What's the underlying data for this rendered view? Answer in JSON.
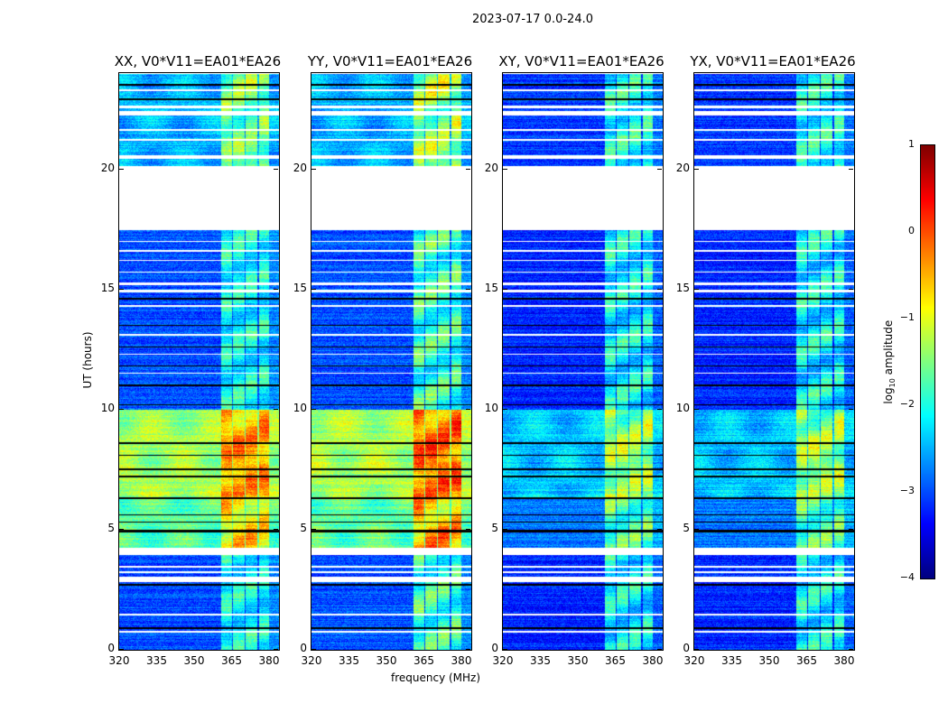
{
  "chart_data": {
    "type": "heatmap",
    "title": "2023-07-17 0.0-24.0",
    "xlabel": "frequency (MHz)",
    "ylabel": "UT (hours)",
    "xlim": [
      320,
      384
    ],
    "ylim": [
      0,
      24
    ],
    "xticks": [
      "320",
      "335",
      "350",
      "365",
      "380"
    ],
    "xtick_values": [
      320,
      335,
      350,
      365,
      380
    ],
    "yticks": [
      "0",
      "5",
      "10",
      "15",
      "20"
    ],
    "ytick_values": [
      0,
      5,
      10,
      15,
      20
    ],
    "colorbar": {
      "label_main": "log",
      "label_sub": "10",
      "label_tail": " amplitude",
      "range": [
        -4,
        1
      ],
      "ticks": [
        "−4",
        "−3",
        "−2",
        "−1",
        "0",
        "1"
      ],
      "tick_values": [
        -4,
        -3,
        -2,
        -1,
        0,
        1
      ],
      "colormap": "jet"
    },
    "flagged_white": [
      [
        0.75,
        0.82
      ],
      [
        1.45,
        1.52
      ],
      [
        2.85,
        3.05
      ],
      [
        3.2,
        3.28
      ],
      [
        3.42,
        3.5
      ],
      [
        3.95,
        4.25
      ],
      [
        11.5,
        11.55
      ],
      [
        12.3,
        12.35
      ],
      [
        13.1,
        13.15
      ],
      [
        14.3,
        14.35
      ],
      [
        14.9,
        15.0
      ],
      [
        15.2,
        15.3
      ],
      [
        15.7,
        15.75
      ],
      [
        16.2,
        16.25
      ],
      [
        16.6,
        16.65
      ],
      [
        17.0,
        17.05
      ],
      [
        17.5,
        20.15
      ],
      [
        20.45,
        20.6
      ],
      [
        21.2,
        21.28
      ],
      [
        21.6,
        21.7
      ],
      [
        22.25,
        22.45
      ],
      [
        22.55,
        22.65
      ],
      [
        23.25,
        23.35
      ]
    ],
    "flagged_black": [
      [
        0.9,
        0.95
      ],
      [
        2.7,
        2.75
      ],
      [
        4.9,
        5.0
      ],
      [
        5.3,
        5.35
      ],
      [
        5.6,
        5.65
      ],
      [
        6.3,
        6.35
      ],
      [
        7.2,
        7.25
      ],
      [
        7.5,
        7.55
      ],
      [
        8.1,
        8.15
      ],
      [
        8.6,
        8.65
      ],
      [
        10.2,
        10.25
      ],
      [
        11.0,
        11.05
      ],
      [
        11.8,
        11.85
      ],
      [
        12.6,
        12.65
      ],
      [
        13.5,
        13.55
      ],
      [
        14.6,
        14.65
      ],
      [
        22.9,
        22.95
      ],
      [
        23.5,
        23.55
      ]
    ],
    "rfi_channels_mhz": [
      [
        360.5,
        365
      ],
      [
        365.5,
        370
      ],
      [
        370.6,
        375
      ],
      [
        375.7,
        380
      ]
    ],
    "panels": [
      {
        "title": "XX, V0*V11=EA01*EA26",
        "segments": [
          [
            0,
            4.2,
            -3.0
          ],
          [
            4.2,
            6.3,
            -1.7
          ],
          [
            6.3,
            10,
            -1.3
          ],
          [
            10,
            17.5,
            -3.0
          ],
          [
            20.15,
            24,
            -2.5
          ]
        ],
        "rfi_boost": 1.3
      },
      {
        "title": "YY, V0*V11=EA01*EA26",
        "segments": [
          [
            0,
            4.2,
            -3.0
          ],
          [
            4.2,
            6.3,
            -1.7
          ],
          [
            6.3,
            10,
            -1.3
          ],
          [
            10,
            17.5,
            -3.0
          ],
          [
            20.15,
            24,
            -2.5
          ]
        ],
        "rfi_boost": 1.6
      },
      {
        "title": "XY, V0*V11=EA01*EA26",
        "segments": [
          [
            0,
            4.2,
            -3.2
          ],
          [
            4.2,
            6.3,
            -2.8
          ],
          [
            6.3,
            10,
            -2.4
          ],
          [
            10,
            17.5,
            -3.2
          ],
          [
            20.15,
            24,
            -3.1
          ]
        ],
        "rfi_boost": 1.5
      },
      {
        "title": "YX, V0*V11=EA01*EA26",
        "segments": [
          [
            0,
            4.2,
            -3.2
          ],
          [
            4.2,
            6.3,
            -2.8
          ],
          [
            6.3,
            10,
            -2.4
          ],
          [
            10,
            17.5,
            -3.2
          ],
          [
            20.15,
            24,
            -3.1
          ]
        ],
        "rfi_boost": 1.5
      }
    ]
  }
}
